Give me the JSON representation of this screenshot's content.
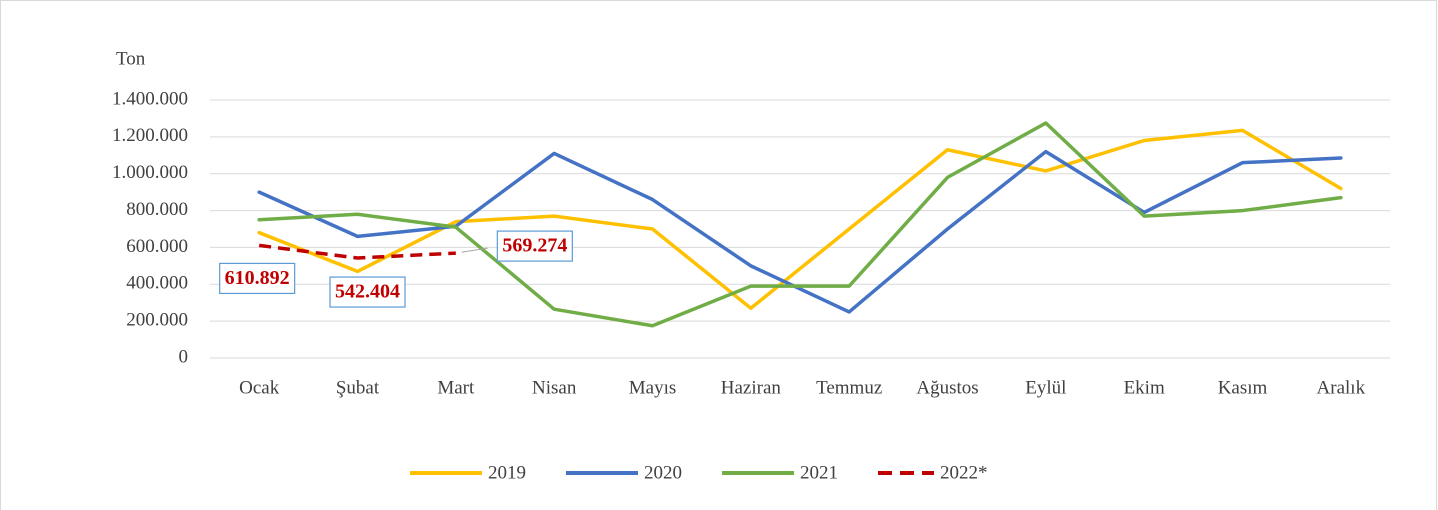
{
  "chart_data": {
    "type": "line",
    "y_label": "Ton",
    "categories": [
      "Ocak",
      "Şubat",
      "Mart",
      "Nisan",
      "Mayıs",
      "Haziran",
      "Temmuz",
      "Ağustos",
      "Eylül",
      "Ekim",
      "Kasım",
      "Aralık"
    ],
    "series": [
      {
        "name": "2019",
        "color": "#FFC000",
        "values": [
          680000,
          470000,
          740000,
          770000,
          700000,
          270000,
          700000,
          1130000,
          1015000,
          1180000,
          1235000,
          920000
        ]
      },
      {
        "name": "2020",
        "color": "#4472C4",
        "values": [
          900000,
          660000,
          715000,
          1110000,
          860000,
          500000,
          250000,
          700000,
          1120000,
          790000,
          1060000,
          1085000
        ]
      },
      {
        "name": "2021",
        "color": "#70AD47",
        "values": [
          750000,
          780000,
          710000,
          265000,
          175000,
          390000,
          390000,
          980000,
          1275000,
          770000,
          800000,
          870000
        ]
      },
      {
        "name": "2022*",
        "color": "#C00000",
        "dashed": true,
        "values": [
          610892,
          542404,
          569274,
          null,
          null,
          null,
          null,
          null,
          null,
          null,
          null,
          null
        ],
        "value_labels": [
          "610.892",
          "542.404",
          "569.274",
          null,
          null,
          null,
          null,
          null,
          null,
          null,
          null,
          null
        ]
      }
    ],
    "ylim": [
      0,
      1400000
    ],
    "yticks": [
      0,
      {
        "value": 200000,
        "label": "200.000"
      },
      {
        "value": 400000,
        "label": "400.000"
      },
      {
        "value": 600000,
        "label": "600.000"
      },
      {
        "value": 800000,
        "label": "800.000"
      },
      {
        "value": 1000000,
        "label": "1.000.000"
      },
      {
        "value": 1200000,
        "label": "1.200.000"
      },
      {
        "value": 1400000,
        "label": "1.400.000"
      }
    ],
    "grid": true,
    "legend": "bottom"
  }
}
